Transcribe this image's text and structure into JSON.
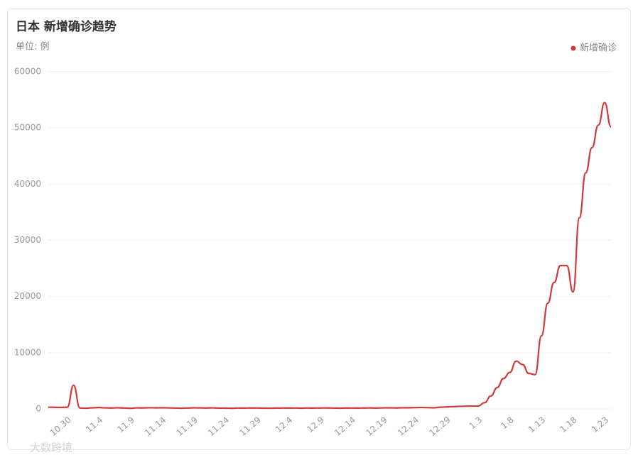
{
  "chart_data": {
    "type": "line",
    "title": "日本 新增确诊趋势",
    "subtitle": "单位: 例",
    "watermark": "大数跨境",
    "categories": [
      null,
      null,
      null,
      "10.30",
      null,
      null,
      null,
      null,
      "11.4",
      null,
      null,
      null,
      null,
      "11.9",
      null,
      null,
      null,
      null,
      "11.14",
      null,
      null,
      null,
      null,
      "11.19",
      null,
      null,
      null,
      null,
      "11.24",
      null,
      null,
      null,
      null,
      "11.29",
      null,
      null,
      null,
      null,
      "12.4",
      null,
      null,
      null,
      null,
      "12.9",
      null,
      null,
      null,
      null,
      "12.14",
      null,
      null,
      null,
      null,
      "12.19",
      null,
      null,
      null,
      null,
      "12.24",
      null,
      null,
      null,
      null,
      "12.29",
      null,
      null,
      null,
      null,
      "1.3",
      null,
      null,
      null,
      null,
      "1.8",
      null,
      null,
      null,
      null,
      "1.13",
      null,
      null,
      null,
      null,
      "1.18",
      null,
      null,
      null,
      null,
      "1.23",
      null
    ],
    "series": [
      {
        "name": "新增确诊",
        "color": "#d03a3a",
        "values": [
          300,
          280,
          260,
          300,
          4200,
          150,
          120,
          200,
          250,
          180,
          160,
          200,
          150,
          100,
          180,
          170,
          200,
          190,
          210,
          180,
          150,
          120,
          150,
          190,
          170,
          160,
          180,
          140,
          130,
          110,
          150,
          140,
          160,
          150,
          130,
          120,
          140,
          150,
          160,
          150,
          130,
          150,
          140,
          160,
          170,
          150,
          130,
          160,
          150,
          140,
          160,
          170,
          150,
          180,
          190,
          170,
          200,
          210,
          230,
          260,
          230,
          200,
          300,
          350,
          400,
          450,
          480,
          500,
          500,
          1100,
          2300,
          3800,
          5400,
          6500,
          8500,
          7900,
          6300,
          6100,
          13000,
          18800,
          22500,
          25500,
          25500,
          20800,
          34000,
          42000,
          46500,
          50500,
          54500,
          50200
        ]
      }
    ],
    "ylim": [
      0,
      60000
    ],
    "yticks": [
      0,
      10000,
      20000,
      30000,
      40000,
      50000,
      60000
    ],
    "grid": true,
    "legend": "top-right"
  }
}
